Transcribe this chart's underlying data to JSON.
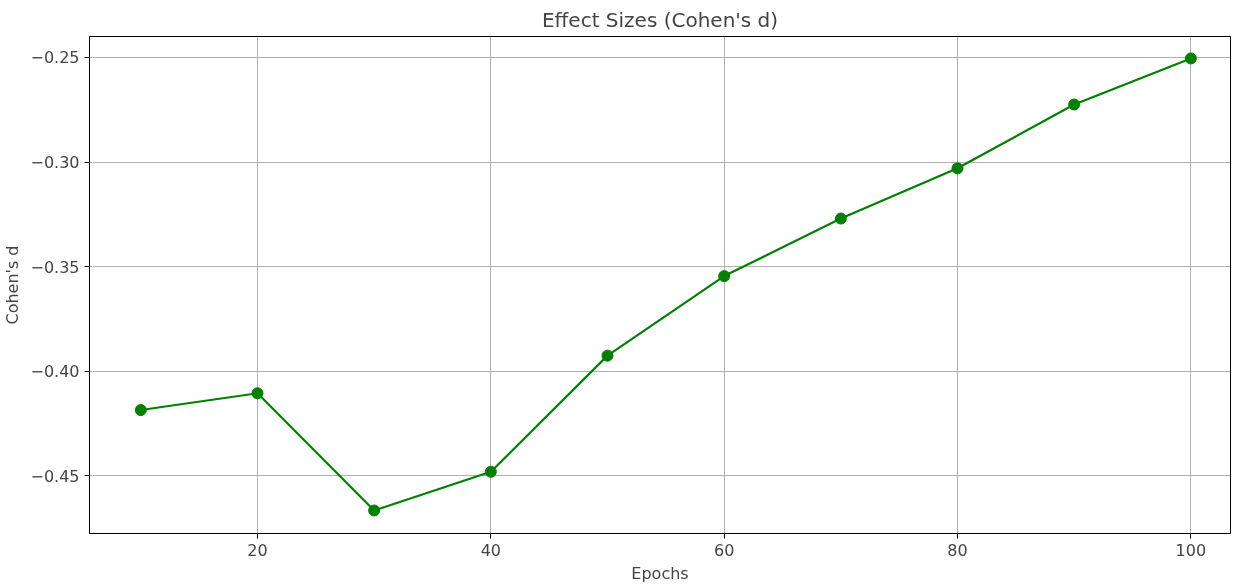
{
  "chart_data": {
    "type": "line",
    "title": "Effect Sizes (Cohen's d)",
    "xlabel": "Epochs",
    "ylabel": "Cohen's d",
    "x": [
      10,
      20,
      30,
      40,
      50,
      60,
      70,
      80,
      90,
      100
    ],
    "series": [
      {
        "color": "#008000",
        "values": [
          -0.4185,
          -0.4105,
          -0.4665,
          -0.448,
          -0.3925,
          -0.3545,
          -0.327,
          -0.303,
          -0.2725,
          -0.2505
        ]
      }
    ],
    "xlim": [
      5.6,
      103.4
    ],
    "ylim": [
      -0.4775,
      -0.24
    ],
    "xticks": [
      20,
      40,
      60,
      80,
      100
    ],
    "yticks": [
      {
        "value": -0.45,
        "label": "−0.45"
      },
      {
        "value": -0.4,
        "label": "−0.40"
      },
      {
        "value": -0.35,
        "label": "−0.35"
      },
      {
        "value": -0.3,
        "label": "−0.30"
      },
      {
        "value": -0.25,
        "label": "−0.25"
      }
    ],
    "grid": true,
    "marker": "circle",
    "line_style": "solid"
  }
}
